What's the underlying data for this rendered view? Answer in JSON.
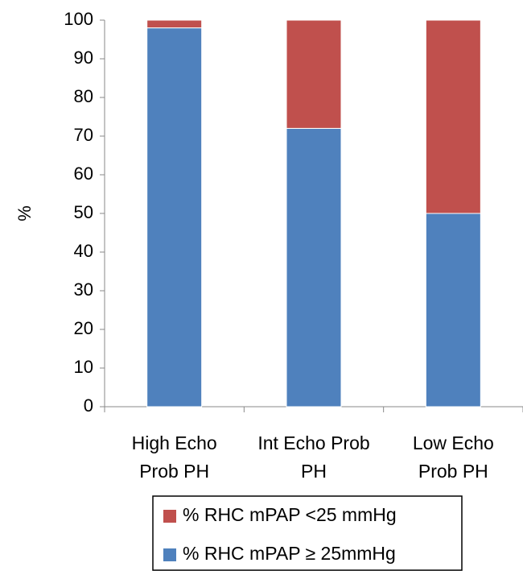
{
  "chart_data": {
    "type": "stacked_bar",
    "y_label": "%",
    "categories": [
      "High Echo Prob PH",
      "Int Echo Prob PH",
      "Low Echo Prob PH"
    ],
    "series": [
      {
        "name": "% RHC mPAP ≥ 25mmHg",
        "color": "#4f81bd",
        "values": [
          98,
          72,
          50
        ]
      },
      {
        "name": "% RHC mPAP <25 mmHg",
        "color": "#c0504d",
        "values": [
          2,
          28,
          50
        ]
      }
    ],
    "ylim": [
      0,
      100
    ],
    "yticks": [
      0,
      10,
      20,
      30,
      40,
      50,
      60,
      70,
      80,
      90,
      100
    ],
    "grid": false
  }
}
